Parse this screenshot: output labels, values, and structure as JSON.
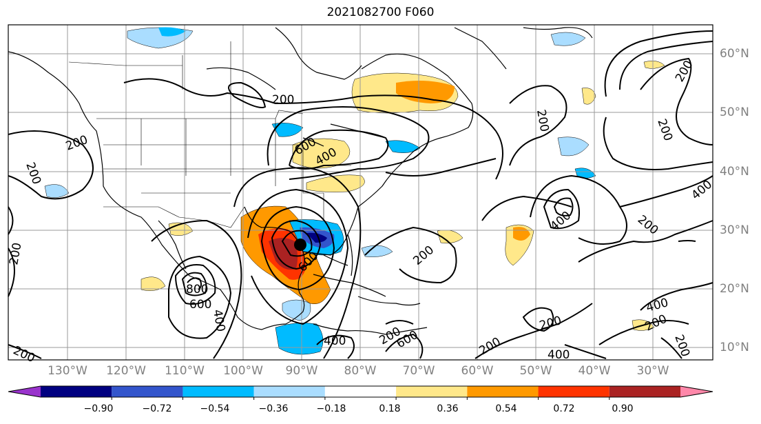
{
  "title": "2021082700 F060",
  "map": {
    "lon_labels": [
      "130°W",
      "120°W",
      "110°W",
      "100°W",
      "90°W",
      "80°W",
      "70°W",
      "60°W",
      "50°W",
      "40°W",
      "30°W"
    ],
    "lat_labels": [
      "60°N",
      "50°N",
      "40°N",
      "30°N",
      "20°N",
      "10°N"
    ],
    "grid": true,
    "contour_labels": [
      "200",
      "200",
      "200",
      "200",
      "200",
      "200",
      "200",
      "200",
      "200",
      "200",
      "200",
      "200",
      "200",
      "200",
      "200",
      "400",
      "400",
      "400",
      "400",
      "400",
      "400",
      "400",
      "600",
      "600",
      "600",
      "600",
      "800"
    ]
  },
  "colorbar": {
    "ticks": [
      "−0.90",
      "−0.72",
      "−0.54",
      "−0.36",
      "−0.18",
      "0.18",
      "0.36",
      "0.54",
      "0.72",
      "0.90"
    ],
    "colors": [
      "#9933cc",
      "#000080",
      "#3355cc",
      "#00bbff",
      "#aaddff",
      "#ffffff",
      "#ffe88a",
      "#ff9900",
      "#ff3300",
      "#aa2222",
      "#ff88aa"
    ]
  }
}
